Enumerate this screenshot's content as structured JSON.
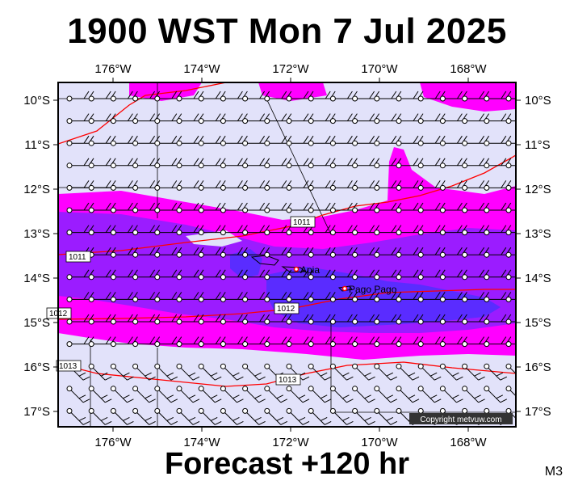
{
  "title": "1900 WST Mon 7 Jul 2025",
  "footer": "Forecast +120 hr",
  "code": "M3",
  "copyright": "Copyright metvuw.com",
  "lon_labels": [
    "176°W",
    "174°W",
    "172°W",
    "170°W",
    "168°W"
  ],
  "lat_labels": [
    "10°S",
    "11°S",
    "12°S",
    "13°S",
    "14°S",
    "15°S",
    "16°S",
    "17°S"
  ],
  "places": {
    "apia": "Apia",
    "pago": "Pago Pago"
  },
  "isobars": [
    "1011",
    "1011",
    "1012",
    "1012",
    "1013",
    "1013"
  ],
  "colors": {
    "light": "#e2e2fa",
    "magenta": "#ff00ff",
    "purple": "#9b1cff",
    "blue": "#5a2cff",
    "isobar": "#ff0000"
  }
}
